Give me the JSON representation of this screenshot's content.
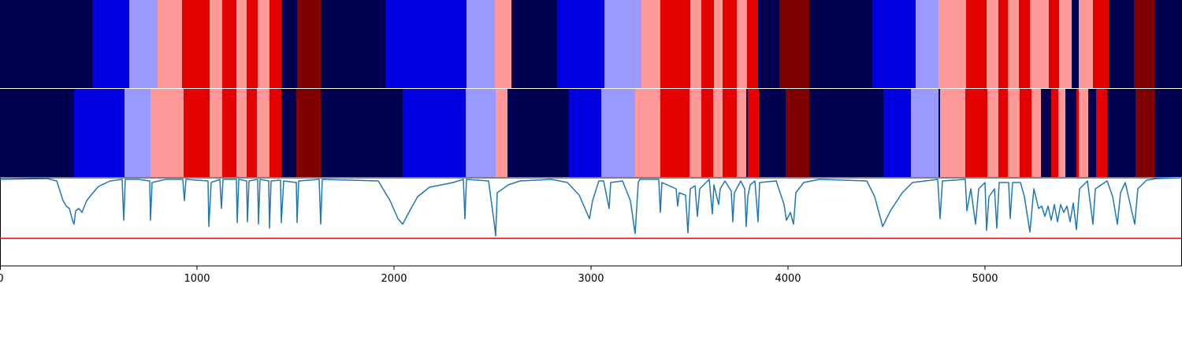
{
  "chart_data": {
    "type": "segmentation",
    "xlim": [
      0,
      6000
    ],
    "xticks": [
      0,
      1000,
      2000,
      3000,
      4000,
      5000
    ],
    "bands": [
      {
        "edges": [
          0,
          468,
          656,
          800,
          924,
          1064,
          1128,
          1200,
          1252,
          1308,
          1368,
          1428,
          1508,
          1628,
          1956,
          2368,
          2512,
          2596,
          2828,
          3068,
          3256,
          3352,
          3504,
          3560,
          3624,
          3668,
          3740,
          3792,
          3848,
          3956,
          4108,
          4428,
          4648,
          4764,
          4904,
          5008,
          5068,
          5116,
          5172,
          5228,
          5324,
          5376,
          5440,
          5476,
          5548,
          5628,
          5756,
          5864,
          6000
        ],
        "colors": [
          "#000050",
          "#0000e0",
          "#9999ff",
          "#ff9999",
          "#e50000",
          "#ff9999",
          "#e50000",
          "#ff9999",
          "#e50000",
          "#ff9999",
          "#e50000",
          "#000050",
          "#800000",
          "#000050",
          "#0000e0",
          "#9999ff",
          "#ff9999",
          "#000050",
          "#0000e0",
          "#9999ff",
          "#ff9999",
          "#e50000",
          "#ff9999",
          "#e50000",
          "#ff9999",
          "#e50000",
          "#ff9999",
          "#e50000",
          "#000050",
          "#800000",
          "#000050",
          "#0000e0",
          "#9999ff",
          "#ff9999",
          "#e50000",
          "#ff9999",
          "#e50000",
          "#ff9999",
          "#e50000",
          "#ff9999",
          "#e50000",
          "#ff9999",
          "#000050",
          "#ff9999",
          "#e50000",
          "#000050",
          "#800000",
          "#000050"
        ]
      },
      {
        "edges": [
          0,
          376,
          632,
          764,
          932,
          1064,
          1128,
          1200,
          1252,
          1304,
          1368,
          1428,
          1504,
          1628,
          2044,
          2364,
          2516,
          2576,
          2888,
          3052,
          3224,
          3352,
          3500,
          3560,
          3620,
          3668,
          3740,
          3788,
          3796,
          3852,
          3988,
          4108,
          4484,
          4624,
          4764,
          4772,
          4900,
          5012,
          5068,
          5116,
          5176,
          5236,
          5284,
          5336,
          5372,
          5408,
          5464,
          5476,
          5524,
          5564,
          5620,
          5764,
          5864,
          6000
        ],
        "colors": [
          "#000050",
          "#0000e0",
          "#9999ff",
          "#ff9999",
          "#e50000",
          "#ff9999",
          "#e50000",
          "#ff9999",
          "#e50000",
          "#ff9999",
          "#e50000",
          "#000050",
          "#800000",
          "#000050",
          "#0000e0",
          "#9999ff",
          "#ff9999",
          "#000050",
          "#0000e0",
          "#9999ff",
          "#ff9999",
          "#e50000",
          "#ff9999",
          "#e50000",
          "#ff9999",
          "#e50000",
          "#ff9999",
          "#000050",
          "#e50000",
          "#000050",
          "#800000",
          "#000050",
          "#0000e0",
          "#9999ff",
          "#000050",
          "#ff9999",
          "#e50000",
          "#ff9999",
          "#e50000",
          "#ff9999",
          "#e50000",
          "#ff9999",
          "#000050",
          "#e50000",
          "#ff9999",
          "#000050",
          "#e50000",
          "#ff9999",
          "#000050",
          "#e50000",
          "#000050",
          "#800000",
          "#000050"
        ]
      }
    ],
    "ylim": [
      0,
      112
    ],
    "threshold": 35,
    "threshold_color": "#e00000",
    "line": {
      "color": "#1f77b4",
      "x": [
        0,
        240,
        288,
        320,
        336,
        352,
        368,
        376,
        384,
        400,
        416,
        440,
        472,
        500,
        560,
        620,
        628,
        636,
        700,
        760,
        764,
        772,
        840,
        928,
        936,
        944,
        1056,
        1060,
        1072,
        1116,
        1124,
        1132,
        1200,
        1204,
        1212,
        1252,
        1256,
        1264,
        1308,
        1312,
        1320,
        1364,
        1368,
        1376,
        1424,
        1428,
        1440,
        1504,
        1508,
        1516,
        1620,
        1628,
        1636,
        1920,
        1980,
        2020,
        2044,
        2080,
        2120,
        2180,
        2300,
        2352,
        2360,
        2368,
        2480,
        2508,
        2516,
        2524,
        2580,
        2640,
        2800,
        2880,
        2940,
        2992,
        3008,
        3040,
        3064,
        3092,
        3100,
        3160,
        3200,
        3224,
        3240,
        3248,
        3344,
        3352,
        3360,
        3432,
        3440,
        3448,
        3480,
        3492,
        3504,
        3528,
        3540,
        3552,
        3600,
        3616,
        3624,
        3648,
        3656,
        3680,
        3712,
        3720,
        3728,
        3760,
        3780,
        3788,
        3796,
        3808,
        3832,
        3848,
        3856,
        3940,
        3980,
        3992,
        4012,
        4028,
        4040,
        4080,
        4160,
        4400,
        4440,
        4472,
        4480,
        4520,
        4580,
        4632,
        4760,
        4772,
        4784,
        4900,
        4908,
        4928,
        4952,
        4968,
        5000,
        5008,
        5020,
        5048,
        5060,
        5072,
        5120,
        5128,
        5140,
        5180,
        5200,
        5228,
        5248,
        5272,
        5288,
        5304,
        5320,
        5336,
        5352,
        5368,
        5384,
        5400,
        5416,
        5432,
        5448,
        5464,
        5480,
        5520,
        5548,
        5560,
        5620,
        5648,
        5672,
        5688,
        5712,
        5760,
        5776,
        5820,
        5872,
        6000
      ],
      "values": [
        110,
        111,
        108,
        83,
        76,
        73,
        58,
        53,
        70,
        73,
        68,
        83,
        93,
        101,
        108,
        110,
        58,
        110,
        110,
        108,
        58,
        106,
        110,
        110,
        83,
        110,
        108,
        50,
        106,
        110,
        73,
        110,
        110,
        55,
        110,
        108,
        56,
        108,
        110,
        53,
        110,
        108,
        48,
        108,
        109,
        55,
        108,
        106,
        55,
        108,
        110,
        53,
        110,
        108,
        83,
        60,
        53,
        70,
        88,
        100,
        106,
        110,
        60,
        110,
        108,
        56,
        38,
        93,
        103,
        108,
        110,
        106,
        90,
        60,
        83,
        108,
        108,
        73,
        106,
        108,
        83,
        41,
        106,
        110,
        110,
        68,
        106,
        98,
        76,
        93,
        90,
        42,
        98,
        102,
        63,
        98,
        110,
        66,
        103,
        78,
        98,
        108,
        95,
        56,
        93,
        108,
        98,
        50,
        88,
        103,
        108,
        56,
        106,
        108,
        78,
        58,
        68,
        53,
        93,
        106,
        110,
        108,
        88,
        58,
        50,
        70,
        93,
        106,
        110,
        60,
        108,
        110,
        70,
        98,
        53,
        98,
        106,
        45,
        88,
        98,
        48,
        106,
        106,
        60,
        106,
        106,
        88,
        43,
        98,
        73,
        76,
        63,
        76,
        58,
        78,
        56,
        78,
        68,
        76,
        56,
        80,
        46,
        98,
        108,
        53,
        98,
        108,
        88,
        53,
        93,
        106,
        53,
        98,
        109,
        111,
        112
      ]
    }
  }
}
